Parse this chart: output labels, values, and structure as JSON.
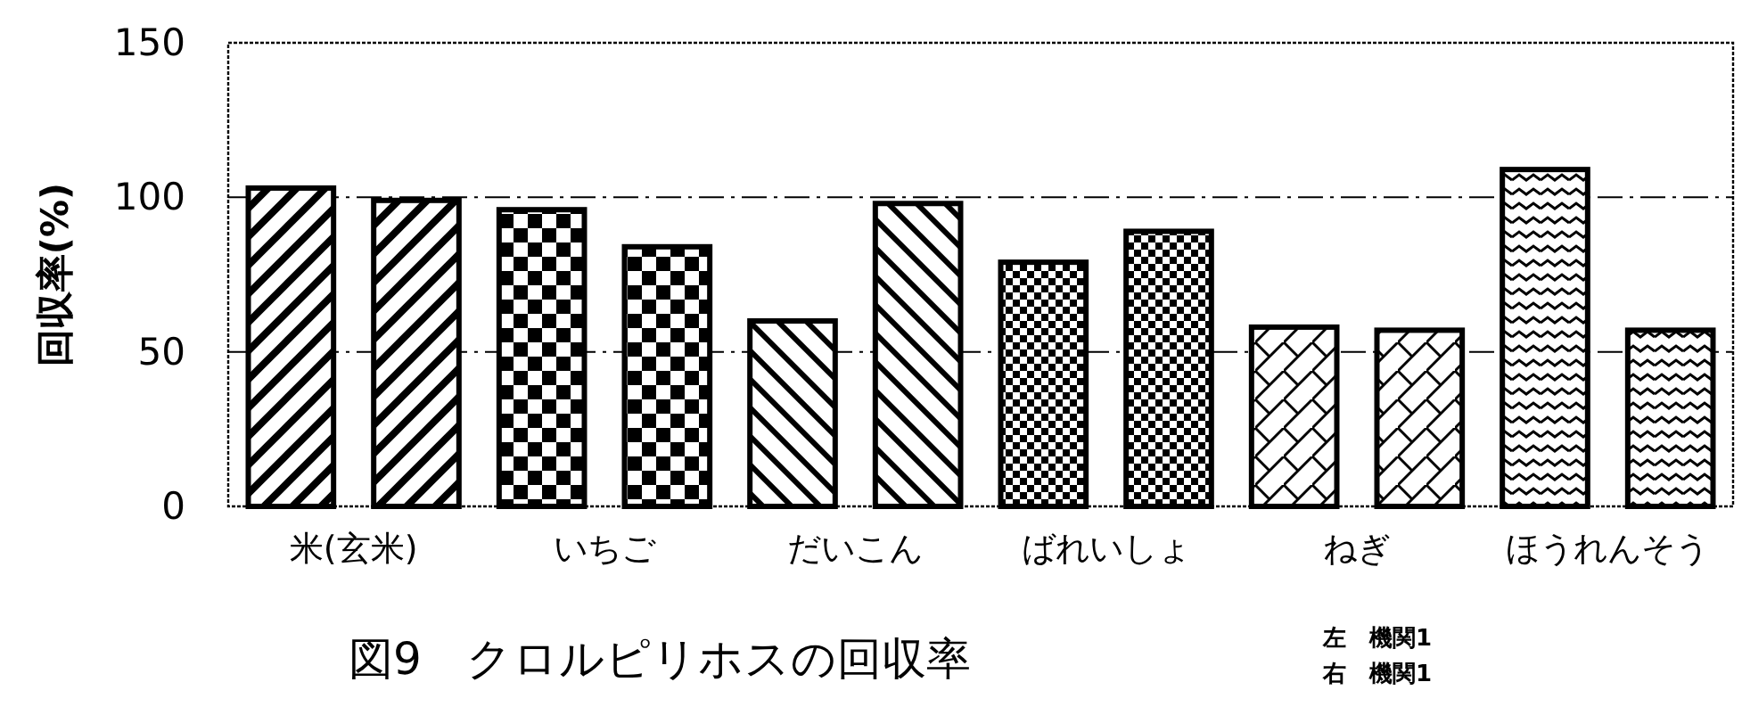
{
  "chart_data": {
    "type": "bar",
    "title": "図9　クロルピリホスの回収率",
    "ylabel": "回収率(%)",
    "categories": [
      "米(玄米)",
      "いちご",
      "だいこん",
      "ばれいしょ",
      "ねぎ",
      "ほうれんそう"
    ],
    "series": [
      {
        "color": "#000000",
        "values": [
          103,
          96,
          60,
          79,
          58,
          109
        ]
      },
      {
        "color": "#000000",
        "values": [
          99,
          84,
          98,
          89,
          57,
          57
        ]
      }
    ],
    "ylim": [
      0,
      150
    ],
    "yticks": [
      0,
      50,
      100,
      150
    ],
    "grid": "y",
    "annotations": [
      "左　機関1",
      "右　機関1"
    ]
  }
}
